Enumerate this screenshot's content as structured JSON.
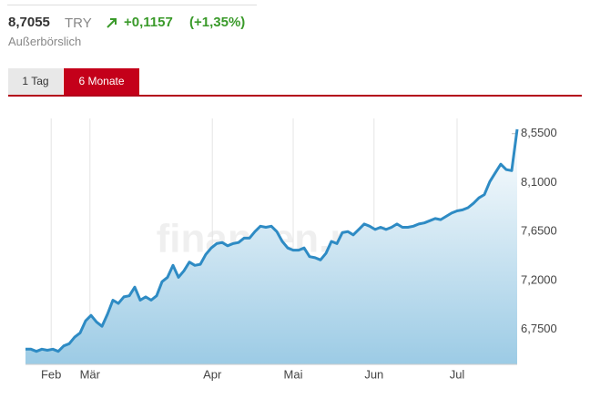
{
  "header": {
    "price": "8,7055",
    "currency": "TRY",
    "change": "+0,1157",
    "change_pct": "(+1,35%)",
    "exchange": "Außerbörslich"
  },
  "tabs": [
    "1 Tag",
    "6 Monate"
  ],
  "watermark": "finanzen.net",
  "chart_data": {
    "type": "area",
    "color": "#2e8bc4",
    "values": [
      6.57,
      6.57,
      6.55,
      6.57,
      6.56,
      6.57,
      6.55,
      6.6,
      6.62,
      6.68,
      6.72,
      6.83,
      6.88,
      6.82,
      6.78,
      6.89,
      7.02,
      6.99,
      7.05,
      7.06,
      7.14,
      7.02,
      7.05,
      7.02,
      7.06,
      7.19,
      7.23,
      7.34,
      7.23,
      7.29,
      7.37,
      7.34,
      7.35,
      7.44,
      7.5,
      7.54,
      7.55,
      7.52,
      7.54,
      7.55,
      7.59,
      7.59,
      7.65,
      7.7,
      7.69,
      7.7,
      7.65,
      7.56,
      7.5,
      7.48,
      7.48,
      7.5,
      7.42,
      7.41,
      7.39,
      7.45,
      7.56,
      7.54,
      7.64,
      7.65,
      7.62,
      7.67,
      7.72,
      7.7,
      7.67,
      7.69,
      7.67,
      7.69,
      7.72,
      7.69,
      7.69,
      7.7,
      7.72,
      7.73,
      7.75,
      7.77,
      7.76,
      7.79,
      7.82,
      7.84,
      7.85,
      7.87,
      7.91,
      7.96,
      7.99,
      8.11,
      8.19,
      8.27,
      8.22,
      8.21,
      8.59
    ],
    "xlim": [
      0,
      90
    ],
    "xticks": [
      {
        "value": 4.7,
        "label": "Feb"
      },
      {
        "value": 11.8,
        "label": "Mär"
      },
      {
        "value": 34.2,
        "label": "Apr"
      },
      {
        "value": 49,
        "label": "Mai"
      },
      {
        "value": 63.8,
        "label": "Jun"
      },
      {
        "value": 79,
        "label": "Jul"
      }
    ],
    "ylim": [
      6.43,
      8.69
    ],
    "yticks": [
      {
        "value": 6.75,
        "label": "6,7500"
      },
      {
        "value": 7.2,
        "label": "7,2000"
      },
      {
        "value": 7.65,
        "label": "7,6500"
      },
      {
        "value": 8.1,
        "label": "8,1000"
      },
      {
        "value": 8.55,
        "label": "8,5500"
      }
    ],
    "grid": true
  }
}
